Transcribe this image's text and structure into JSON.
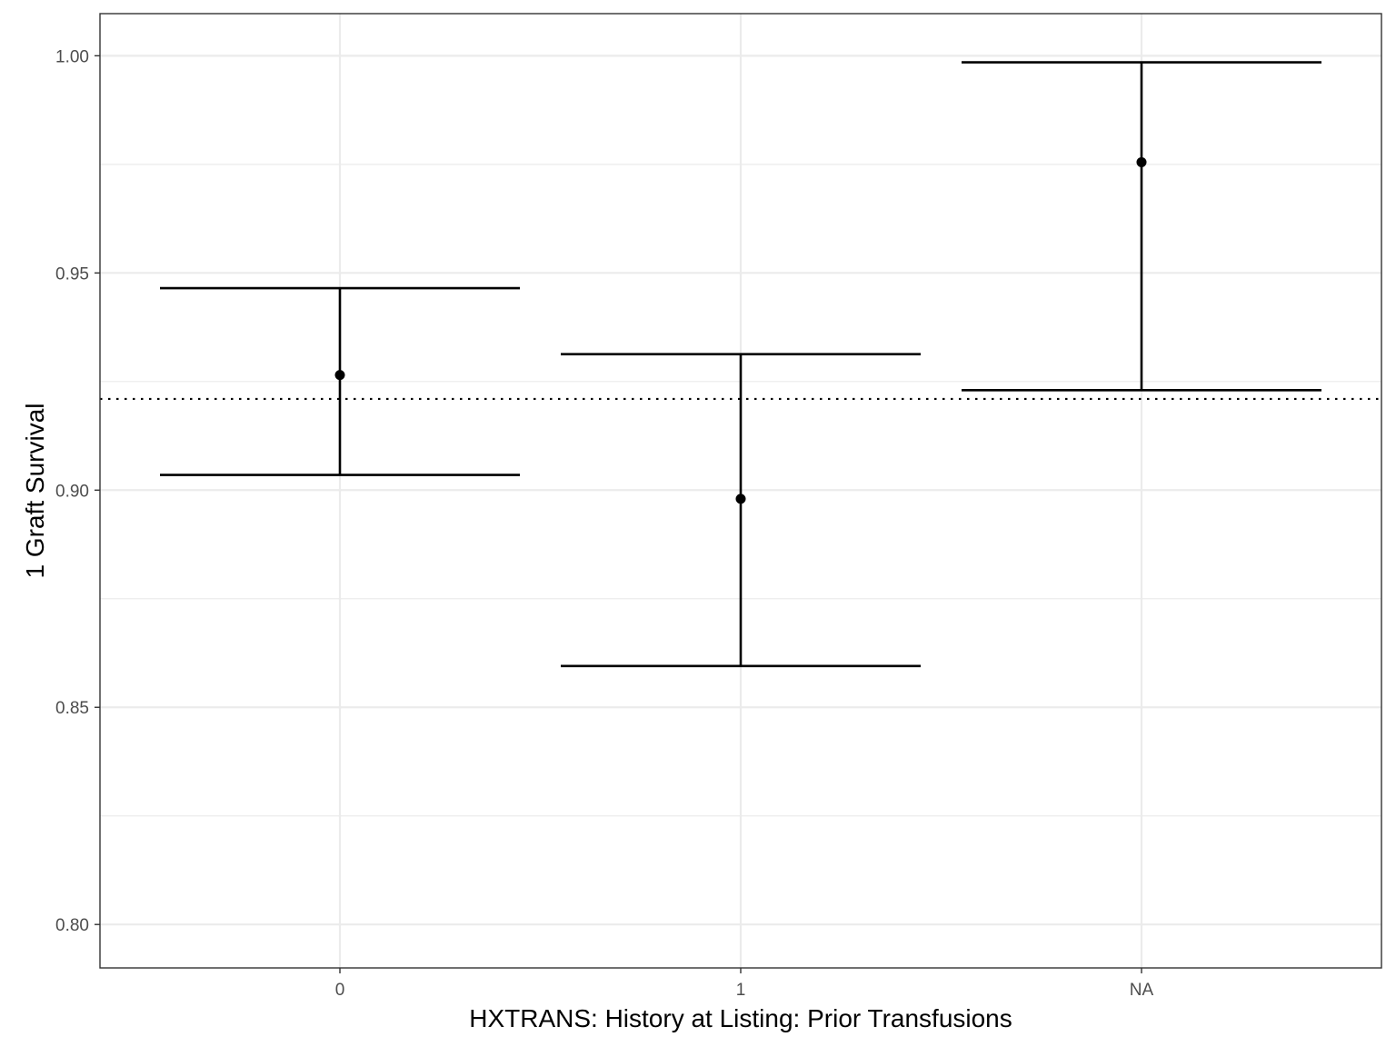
{
  "chart_data": {
    "type": "errorbar",
    "xlabel": "HXTRANS: History at Listing: Prior Transfusions",
    "ylabel": "1 Graft Survival",
    "categories": [
      "0",
      "1",
      "NA"
    ],
    "points": [
      {
        "category": "0",
        "estimate": 0.9265,
        "lower": 0.9035,
        "upper": 0.9465
      },
      {
        "category": "1",
        "estimate": 0.898,
        "lower": 0.8595,
        "upper": 0.9313
      },
      {
        "category": "NA",
        "estimate": 0.9755,
        "lower": 0.923,
        "upper": 0.9985
      }
    ],
    "reference_line": {
      "y": 0.921,
      "style": "dotted"
    },
    "ylim": [
      0.79,
      1.0097
    ],
    "y_ticks": [
      "0.80",
      "0.85",
      "0.90",
      "0.95",
      "1.00"
    ],
    "y_minor_ticks": [
      0.825,
      0.875,
      0.925,
      0.975
    ],
    "grid": true,
    "legend": "none",
    "colors": {
      "marks": "#000000",
      "grid": "#ebebeb",
      "panel_border": "#333333",
      "tick_text": "#4d4d4d"
    }
  }
}
